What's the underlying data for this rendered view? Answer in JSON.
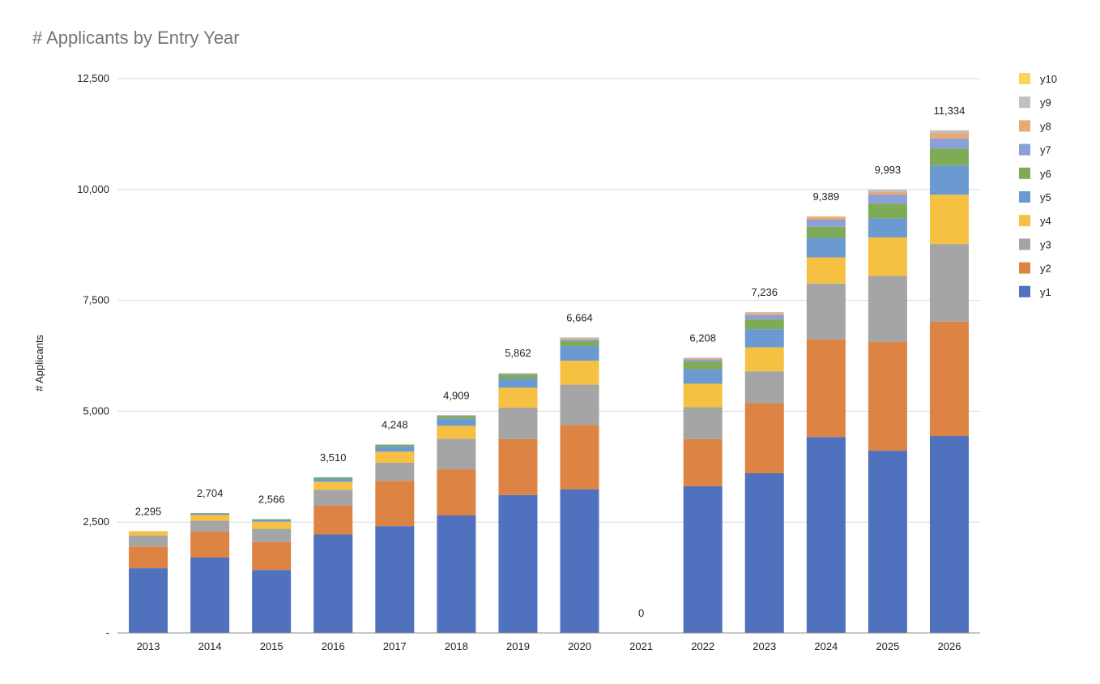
{
  "chart_data": {
    "type": "bar",
    "stacked": true,
    "title": "# Applicants by Entry Year",
    "xlabel": "",
    "ylabel": "# Applicants",
    "ylim": [
      0,
      12500
    ],
    "yticks": [
      0,
      2500,
      5000,
      7500,
      10000,
      12500
    ],
    "ytick_labels": [
      "-",
      "2,500",
      "5,000",
      "7,500",
      "10,000",
      "12,500"
    ],
    "grid": true,
    "legend_position": "right",
    "categories": [
      "2013",
      "2014",
      "2015",
      "2016",
      "2017",
      "2018",
      "2019",
      "2020",
      "2021",
      "2022",
      "2023",
      "2024",
      "2025",
      "2026"
    ],
    "totals": [
      2295,
      2704,
      2566,
      3510,
      4248,
      4909,
      5862,
      6664,
      0,
      6208,
      7236,
      9389,
      9993,
      11334
    ],
    "total_labels": [
      "2,295",
      "2,704",
      "2,566",
      "3,510",
      "4,248",
      "4,909",
      "5,862",
      "6,664",
      "0",
      "6,208",
      "7,236",
      "9,389",
      "9,993",
      "11,334"
    ],
    "series": [
      {
        "name": "y1",
        "color": "#4f71be",
        "values": [
          1460,
          1700,
          1420,
          2220,
          2410,
          2650,
          3110,
          3240,
          0,
          3310,
          3600,
          4420,
          4110,
          4440
        ]
      },
      {
        "name": "y2",
        "color": "#dd8344",
        "values": [
          490,
          590,
          630,
          650,
          1020,
          1040,
          1260,
          1450,
          0,
          1060,
          1580,
          2200,
          2450,
          2580
        ]
      },
      {
        "name": "y3",
        "color": "#a5a5a5",
        "values": [
          250,
          240,
          300,
          360,
          410,
          690,
          710,
          910,
          0,
          720,
          720,
          1260,
          1490,
          1750
        ]
      },
      {
        "name": "y4",
        "color": "#f6c143",
        "values": [
          95,
          130,
          160,
          180,
          250,
          290,
          450,
          540,
          0,
          530,
          540,
          590,
          870,
          1110
        ]
      },
      {
        "name": "y5",
        "color": "#6a9ad0",
        "values": [
          0,
          30,
          40,
          70,
          120,
          160,
          200,
          330,
          0,
          330,
          410,
          440,
          430,
          660
        ]
      },
      {
        "name": "y6",
        "color": "#7eab55",
        "values": [
          0,
          14,
          16,
          30,
          38,
          59,
          90,
          110,
          0,
          170,
          220,
          250,
          330,
          380
        ]
      },
      {
        "name": "y7",
        "color": "#8ba0d6",
        "values": [
          0,
          0,
          0,
          0,
          0,
          20,
          22,
          40,
          0,
          50,
          100,
          160,
          210,
          230
        ]
      },
      {
        "name": "y8",
        "color": "#eaa972",
        "values": [
          0,
          0,
          0,
          0,
          0,
          0,
          10,
          24,
          0,
          28,
          46,
          69,
          63,
          124
        ]
      },
      {
        "name": "y9",
        "color": "#c1c1c1",
        "values": [
          0,
          0,
          0,
          0,
          0,
          0,
          10,
          20,
          0,
          10,
          20,
          0,
          40,
          60
        ]
      },
      {
        "name": "y10",
        "color": "#f9d65b",
        "values": [
          0,
          0,
          0,
          0,
          0,
          0,
          0,
          0,
          0,
          0,
          0,
          0,
          0,
          0
        ]
      }
    ]
  }
}
